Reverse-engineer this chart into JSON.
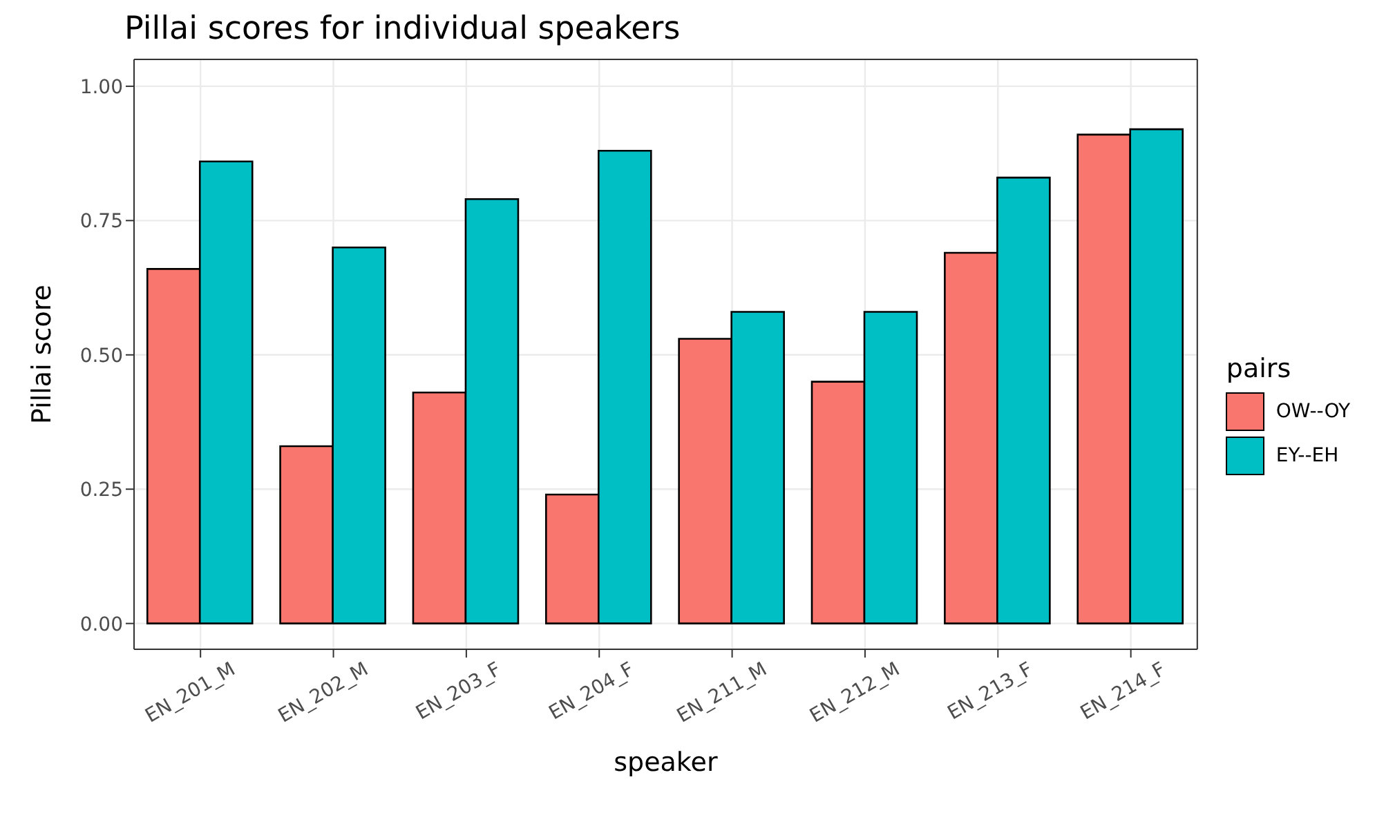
{
  "chart_data": {
    "type": "bar",
    "title": "Pillai scores for individual speakers",
    "xlabel": "speaker",
    "ylabel": "Pillai score",
    "legend_title": "pairs",
    "categories": [
      "EN_201_M",
      "EN_202_M",
      "EN_203_F",
      "EN_204_F",
      "EN_211_M",
      "EN_212_M",
      "EN_213_F",
      "EN_214_F"
    ],
    "series": [
      {
        "name": "OW--OY",
        "color": "#f8766d",
        "values": [
          0.66,
          0.33,
          0.43,
          0.24,
          0.53,
          0.45,
          0.69,
          0.91
        ]
      },
      {
        "name": "EY--EH",
        "color": "#00bfc4",
        "values": [
          0.86,
          0.7,
          0.79,
          0.88,
          0.58,
          0.58,
          0.83,
          0.92
        ]
      }
    ],
    "ylim": [
      -0.048,
      1.05
    ],
    "yticks": [
      {
        "value": 0,
        "label": "0.00"
      },
      {
        "value": 0.25,
        "label": "0.25"
      },
      {
        "value": 0.5,
        "label": "0.50"
      },
      {
        "value": 0.75,
        "label": "0.75"
      },
      {
        "value": 1,
        "label": "1.00"
      }
    ],
    "grid": true,
    "legend": "right"
  }
}
